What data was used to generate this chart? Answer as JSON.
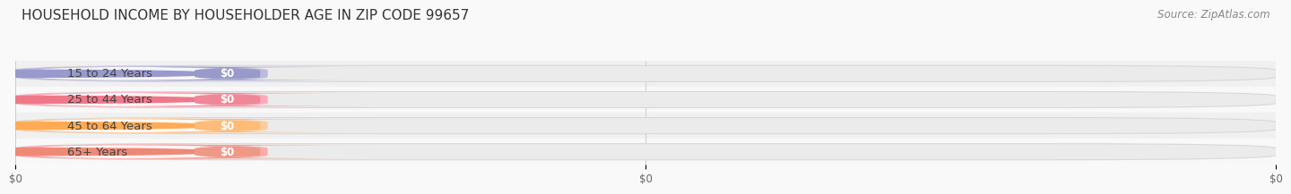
{
  "title": "HOUSEHOLD INCOME BY HOUSEHOLDER AGE IN ZIP CODE 99657",
  "source": "Source: ZipAtlas.com",
  "categories": [
    "15 to 24 Years",
    "25 to 44 Years",
    "45 to 64 Years",
    "65+ Years"
  ],
  "values": [
    0,
    0,
    0,
    0
  ],
  "bar_colors": [
    "#9999cc",
    "#ee8899",
    "#ffbb77",
    "#ee9988"
  ],
  "bar_colors_light": [
    "#bbbbdd",
    "#ffaabb",
    "#ffcc99",
    "#ffaaaa"
  ],
  "circle_colors": [
    "#9999cc",
    "#ee7788",
    "#ffaa55",
    "#ee8877"
  ],
  "xlim_data": [
    0,
    1
  ],
  "x_tick_positions": [
    0,
    0.5,
    1.0
  ],
  "x_tick_labels": [
    "$0",
    "$0",
    "$0"
  ],
  "background_color": "#f9f9f9",
  "row_bg_even": "#f0f0f0",
  "row_bg_odd": "#f8f8f8",
  "bar_bg_color": "#ebebeb",
  "bar_border_color": "#d8d8d8",
  "title_fontsize": 11,
  "source_fontsize": 8.5,
  "label_fontsize": 9.5,
  "value_fontsize": 8.5,
  "tick_fontsize": 8.5
}
